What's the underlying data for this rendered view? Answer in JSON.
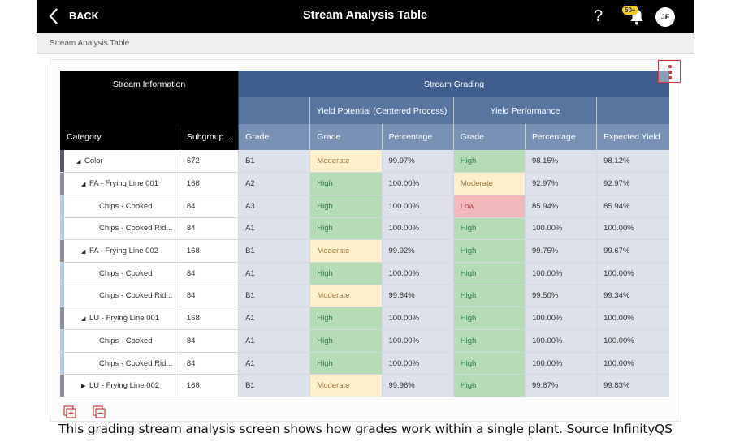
{
  "topbar": {
    "back_label": "BACK",
    "title": "Stream Analysis Table",
    "help_label": "?",
    "notification_badge": "50+",
    "avatar_initials": "JF"
  },
  "breadcrumb": {
    "current": "Stream Analysis Table"
  },
  "colors": {
    "header_black": "#000000",
    "stream_grading_dark": "#3f5d8c",
    "stream_grading_mid": "#58759f",
    "stream_grading_light": "#7891b5",
    "high": "#b6dcb6",
    "moderate": "#fcefc9",
    "low": "#f2b9bd",
    "accent_red": "#d23b3b"
  },
  "table": {
    "group_headers": {
      "stream_information": "Stream Information",
      "stream_grading": "Stream Grading"
    },
    "sub_headers": {
      "yield_potential": "Yield Potential (Centered Process)",
      "yield_performance": "Yield Performance"
    },
    "columns": {
      "category": "Category",
      "subgroup": "Subgroup ...",
      "grade": "Grade",
      "yp_grade": "Grade",
      "yp_percentage": "Percentage",
      "yperf_grade": "Grade",
      "yperf_percentage": "Percentage",
      "expected_yield": "Expected Yield"
    },
    "rows": [
      {
        "level": 0,
        "toggle": "expanded",
        "category": "Color",
        "subgroup": "672",
        "grade": "B1",
        "yp_grade": "Moderate",
        "yp_pct": "99.97%",
        "yperf_grade": "High",
        "yperf_pct": "98.15%",
        "expected": "98.12%"
      },
      {
        "level": 1,
        "toggle": "expanded",
        "category": "FA - Frying Line 001",
        "subgroup": "168",
        "grade": "A2",
        "yp_grade": "High",
        "yp_pct": "100.00%",
        "yperf_grade": "Moderate",
        "yperf_pct": "92.97%",
        "expected": "92.97%"
      },
      {
        "level": 2,
        "toggle": "none",
        "category": "Chips - Cooked",
        "subgroup": "84",
        "grade": "A3",
        "yp_grade": "High",
        "yp_pct": "100.00%",
        "yperf_grade": "Low",
        "yperf_pct": "85.94%",
        "expected": "85.94%"
      },
      {
        "level": 2,
        "toggle": "none",
        "category": "Chips - Cooked Rid...",
        "subgroup": "84",
        "grade": "A1",
        "yp_grade": "High",
        "yp_pct": "100.00%",
        "yperf_grade": "High",
        "yperf_pct": "100.00%",
        "expected": "100.00%"
      },
      {
        "level": 1,
        "toggle": "expanded",
        "category": "FA - Frying Line 002",
        "subgroup": "168",
        "grade": "B1",
        "yp_grade": "Moderate",
        "yp_pct": "99.92%",
        "yperf_grade": "High",
        "yperf_pct": "99.75%",
        "expected": "99.67%"
      },
      {
        "level": 2,
        "toggle": "none",
        "category": "Chips - Cooked",
        "subgroup": "84",
        "grade": "A1",
        "yp_grade": "High",
        "yp_pct": "100.00%",
        "yperf_grade": "High",
        "yperf_pct": "100.00%",
        "expected": "100.00%"
      },
      {
        "level": 2,
        "toggle": "none",
        "category": "Chips - Cooked Rid...",
        "subgroup": "84",
        "grade": "B1",
        "yp_grade": "Moderate",
        "yp_pct": "99.84%",
        "yperf_grade": "High",
        "yperf_pct": "99.50%",
        "expected": "99.34%"
      },
      {
        "level": 1,
        "toggle": "expanded",
        "category": "LU - Frying Line 001",
        "subgroup": "168",
        "grade": "A1",
        "yp_grade": "High",
        "yp_pct": "100.00%",
        "yperf_grade": "High",
        "yperf_pct": "100.00%",
        "expected": "100.00%"
      },
      {
        "level": 2,
        "toggle": "none",
        "category": "Chips - Cooked",
        "subgroup": "84",
        "grade": "A1",
        "yp_grade": "High",
        "yp_pct": "100.00%",
        "yperf_grade": "High",
        "yperf_pct": "100.00%",
        "expected": "100.00%"
      },
      {
        "level": 2,
        "toggle": "none",
        "category": "Chips - Cooked Rid...",
        "subgroup": "84",
        "grade": "A1",
        "yp_grade": "High",
        "yp_pct": "100.00%",
        "yperf_grade": "High",
        "yperf_pct": "100.00%",
        "expected": "100.00%"
      },
      {
        "level": 1,
        "toggle": "collapsed",
        "category": "LU - Frying Line 002",
        "subgroup": "168",
        "grade": "B1",
        "yp_grade": "Moderate",
        "yp_pct": "99.96%",
        "yperf_grade": "High",
        "yperf_pct": "99.87%",
        "expected": "99.83%"
      }
    ]
  },
  "footer_icons": [
    "expand-all-icon",
    "collapse-all-icon"
  ],
  "caption": "This grading stream analysis screen shows how grades work within a single plant. Source InfinityQS"
}
